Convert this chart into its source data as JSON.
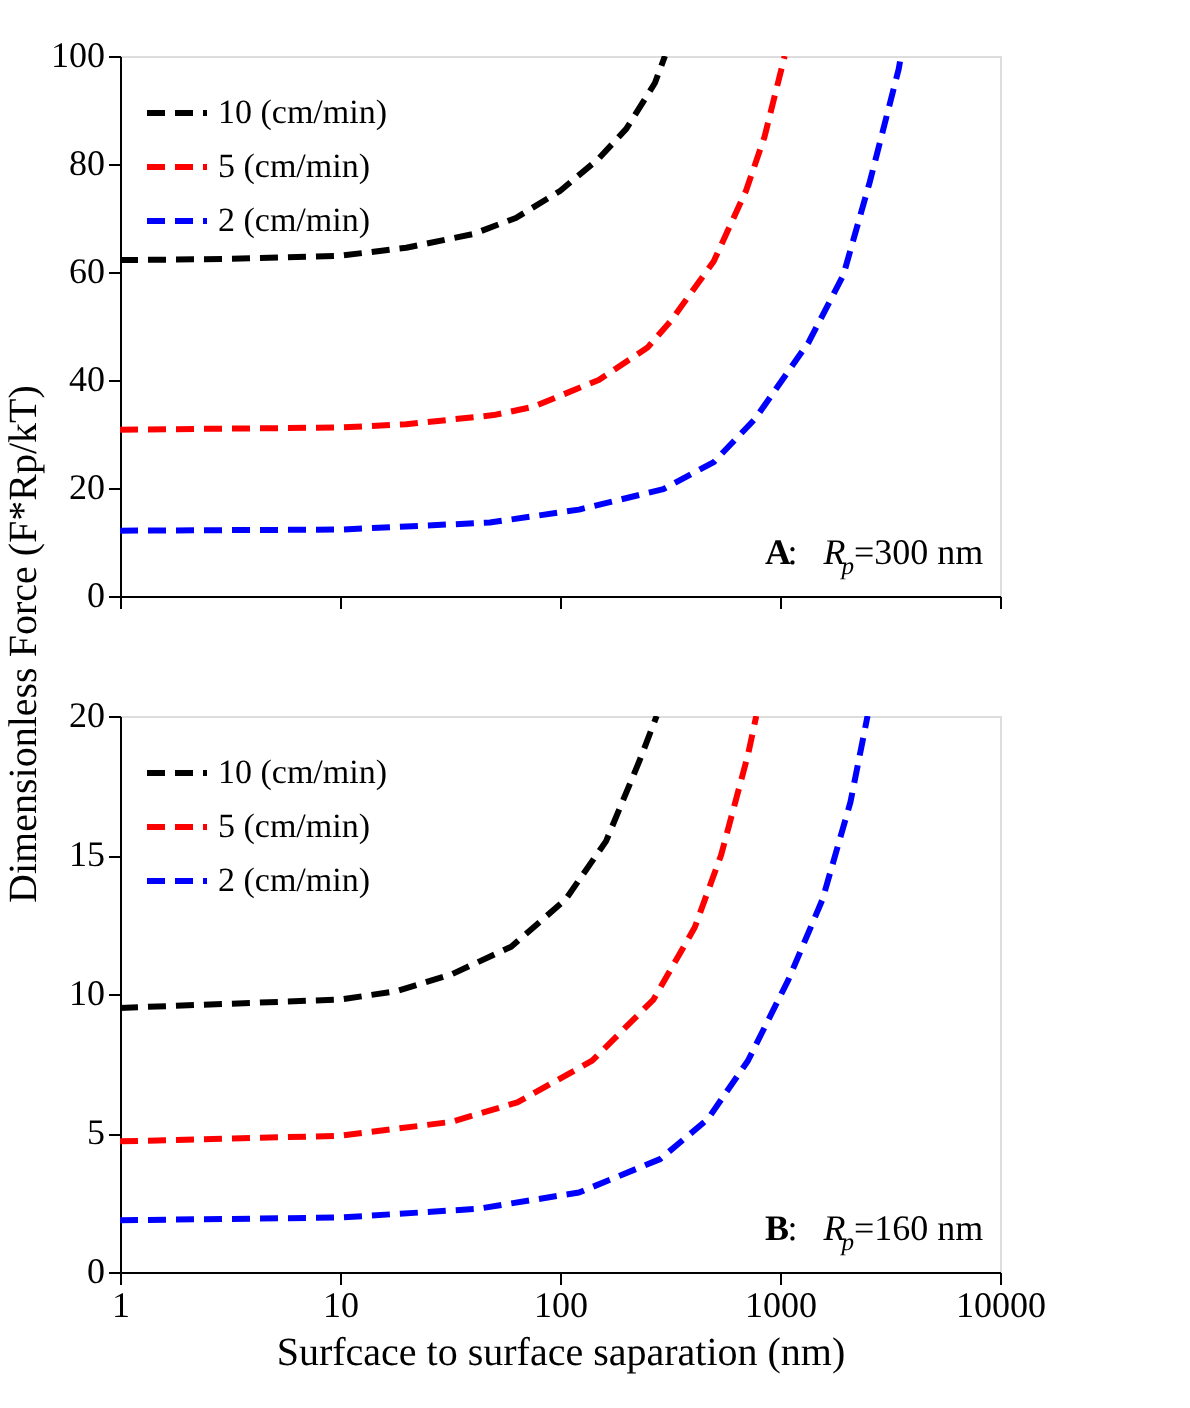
{
  "chart_data": [
    {
      "type": "line",
      "ylabel": "Dimensionless Force (F*Rp/kT)",
      "log": "x",
      "xlim": [
        1,
        10000
      ],
      "xticks": [
        1,
        10,
        100,
        1000,
        10000
      ],
      "ylim": [
        0,
        100
      ],
      "yticks": [
        0,
        20,
        40,
        60,
        80,
        100
      ],
      "tick_labels": "y",
      "grid": false,
      "legend": "top left",
      "line_style": "dashed",
      "annotations": [
        "A: R$_{p}$=300 nm"
      ],
      "series": [
        {
          "name": "10 (cm/min)",
          "color": "#000000",
          "x": [
            1,
            3,
            10,
            20,
            40,
            63,
            100,
            150,
            200,
            270,
            300
          ],
          "values": [
            62.2,
            62.4,
            63,
            64.5,
            67,
            70,
            75,
            81,
            86.5,
            95,
            100
          ]
        },
        {
          "name": "5  (cm/min)",
          "color": "#ff0000",
          "x": [
            1,
            10,
            20,
            50,
            75,
            150,
            250,
            320,
            500,
            700,
            850,
            1050
          ],
          "values": [
            30.8,
            31.2,
            31.8,
            33.5,
            35,
            40,
            46,
            51,
            62,
            75,
            85,
            100
          ]
        },
        {
          "name": "2  (cm/min)",
          "color": "#0000ff",
          "x": [
            1,
            10,
            48,
            122,
            295,
            500,
            770,
            1350,
            1940,
            2560,
            3460,
            3550
          ],
          "values": [
            12.1,
            12.3,
            13.6,
            16,
            19.8,
            24.8,
            32.8,
            47,
            59.4,
            76.7,
            97.5,
            100
          ]
        }
      ]
    },
    {
      "type": "line",
      "xlabel": "Surfcace to surface saparation (nm)",
      "log": "x",
      "xlim": [
        1,
        10000
      ],
      "xticks": [
        1,
        10,
        100,
        1000,
        10000
      ],
      "ylim": [
        0,
        20
      ],
      "yticks": [
        0,
        5,
        10,
        15,
        20
      ],
      "grid": false,
      "legend": "top left",
      "line_style": "dashed",
      "annotations": [
        "B: R$_{p}$=160 nm"
      ],
      "series": [
        {
          "name": "10 (cm/min)",
          "color": "#000000",
          "x": [
            1,
            10,
            18,
            32,
            60,
            106,
            162,
            230,
            275
          ],
          "values": [
            9.5,
            9.8,
            10.1,
            10.7,
            11.7,
            13.4,
            15.5,
            18.4,
            20
          ]
        },
        {
          "name": "5  (cm/min)",
          "color": "#ff0000",
          "x": [
            1,
            10,
            32,
            64,
            140,
            266,
            410,
            540,
            715,
            780
          ],
          "values": [
            4.7,
            4.9,
            5.4,
            6.1,
            7.6,
            9.8,
            12.4,
            15,
            18.6,
            20
          ]
        },
        {
          "name": "2  (cm/min)",
          "color": "#0000ff",
          "x": [
            1,
            10,
            42,
            122,
            285,
            470,
            715,
            1090,
            1560,
            2090,
            2500
          ],
          "values": [
            1.86,
            1.96,
            2.27,
            2.86,
            4.06,
            5.5,
            7.6,
            10.5,
            13.4,
            16.9,
            20
          ]
        }
      ]
    }
  ]
}
